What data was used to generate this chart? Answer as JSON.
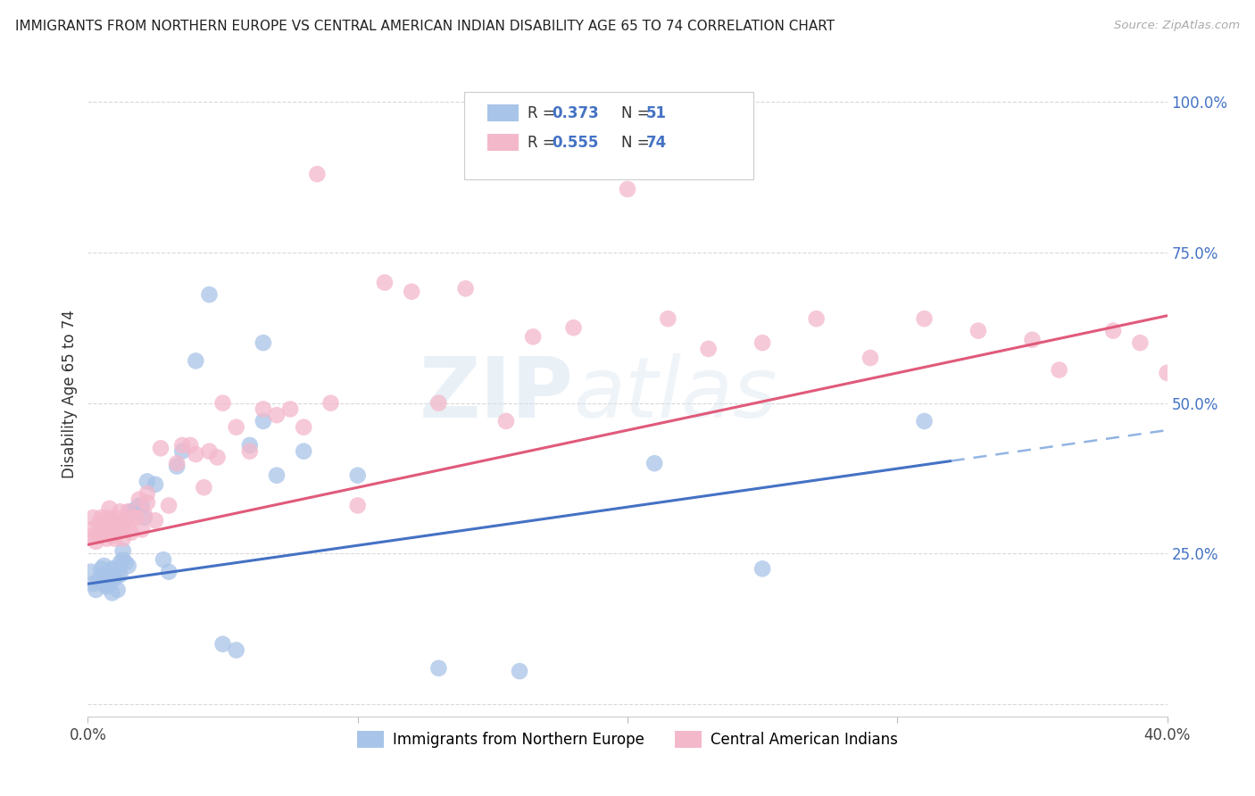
{
  "title": "IMMIGRANTS FROM NORTHERN EUROPE VS CENTRAL AMERICAN INDIAN DISABILITY AGE 65 TO 74 CORRELATION CHART",
  "source": "Source: ZipAtlas.com",
  "ylabel": "Disability Age 65 to 74",
  "xlim": [
    0.0,
    0.4
  ],
  "ylim": [
    -0.02,
    1.05
  ],
  "ytick_vals": [
    0.0,
    0.25,
    0.5,
    0.75,
    1.0
  ],
  "ytick_labels": [
    "",
    "25.0%",
    "50.0%",
    "75.0%",
    "100.0%"
  ],
  "xtick_vals": [
    0.0,
    0.1,
    0.2,
    0.3,
    0.4
  ],
  "xtick_labels": [
    "0.0%",
    "",
    "",
    "",
    "40.0%"
  ],
  "series1_label": "Immigrants from Northern Europe",
  "series1_color": "#a8c4e8",
  "series1_line_color": "#4472c4",
  "series1_dash_color": "#92b4e3",
  "series1_R": "0.373",
  "series1_N": "51",
  "series2_label": "Central American Indians",
  "series2_color": "#f4b8cb",
  "series2_line_color": "#e05a7a",
  "series2_R": "0.555",
  "series2_N": "74",
  "stat_color": "#4472c4",
  "background_color": "#ffffff",
  "grid_color": "#d9d9d9",
  "watermark": "ZIPatlas",
  "series1_x": [
    0.001,
    0.002,
    0.003,
    0.004,
    0.005,
    0.005,
    0.006,
    0.006,
    0.007,
    0.007,
    0.008,
    0.008,
    0.009,
    0.009,
    0.01,
    0.01,
    0.011,
    0.011,
    0.012,
    0.012,
    0.013,
    0.013,
    0.014,
    0.015,
    0.016,
    0.017,
    0.018,
    0.019,
    0.02,
    0.021,
    0.022,
    0.025,
    0.028,
    0.03,
    0.033,
    0.035,
    0.04,
    0.045,
    0.05,
    0.055,
    0.06,
    0.065,
    0.065,
    0.07,
    0.08,
    0.1,
    0.13,
    0.16,
    0.21,
    0.25,
    0.31
  ],
  "series1_y": [
    0.22,
    0.2,
    0.19,
    0.205,
    0.215,
    0.225,
    0.2,
    0.23,
    0.21,
    0.195,
    0.215,
    0.2,
    0.225,
    0.185,
    0.21,
    0.225,
    0.19,
    0.215,
    0.215,
    0.235,
    0.255,
    0.24,
    0.235,
    0.23,
    0.32,
    0.32,
    0.325,
    0.33,
    0.33,
    0.31,
    0.37,
    0.365,
    0.24,
    0.22,
    0.395,
    0.42,
    0.57,
    0.68,
    0.1,
    0.09,
    0.43,
    0.47,
    0.6,
    0.38,
    0.42,
    0.38,
    0.06,
    0.055,
    0.4,
    0.225,
    0.47
  ],
  "series2_x": [
    0.001,
    0.002,
    0.002,
    0.003,
    0.004,
    0.004,
    0.005,
    0.005,
    0.006,
    0.006,
    0.007,
    0.007,
    0.008,
    0.008,
    0.009,
    0.009,
    0.01,
    0.01,
    0.011,
    0.012,
    0.012,
    0.013,
    0.013,
    0.014,
    0.015,
    0.015,
    0.016,
    0.017,
    0.018,
    0.019,
    0.02,
    0.021,
    0.022,
    0.022,
    0.025,
    0.027,
    0.03,
    0.033,
    0.035,
    0.038,
    0.04,
    0.043,
    0.045,
    0.048,
    0.05,
    0.055,
    0.06,
    0.065,
    0.07,
    0.075,
    0.08,
    0.085,
    0.09,
    0.1,
    0.11,
    0.12,
    0.13,
    0.14,
    0.155,
    0.165,
    0.18,
    0.2,
    0.215,
    0.23,
    0.25,
    0.27,
    0.29,
    0.31,
    0.33,
    0.35,
    0.36,
    0.38,
    0.39,
    0.4
  ],
  "series2_y": [
    0.29,
    0.28,
    0.31,
    0.27,
    0.3,
    0.28,
    0.295,
    0.31,
    0.285,
    0.3,
    0.275,
    0.31,
    0.295,
    0.325,
    0.28,
    0.305,
    0.275,
    0.31,
    0.3,
    0.29,
    0.32,
    0.29,
    0.275,
    0.305,
    0.295,
    0.32,
    0.285,
    0.31,
    0.31,
    0.34,
    0.29,
    0.315,
    0.335,
    0.35,
    0.305,
    0.425,
    0.33,
    0.4,
    0.43,
    0.43,
    0.415,
    0.36,
    0.42,
    0.41,
    0.5,
    0.46,
    0.42,
    0.49,
    0.48,
    0.49,
    0.46,
    0.88,
    0.5,
    0.33,
    0.7,
    0.685,
    0.5,
    0.69,
    0.47,
    0.61,
    0.625,
    0.855,
    0.64,
    0.59,
    0.6,
    0.64,
    0.575,
    0.64,
    0.62,
    0.605,
    0.555,
    0.62,
    0.6,
    0.55
  ],
  "trendline1_x0": 0.0,
  "trendline1_y0": 0.2,
  "trendline1_x1": 0.4,
  "trendline1_y1": 0.455,
  "trendline1_solid_end": 0.32,
  "trendline2_x0": 0.0,
  "trendline2_y0": 0.265,
  "trendline2_x1": 0.4,
  "trendline2_y1": 0.645
}
